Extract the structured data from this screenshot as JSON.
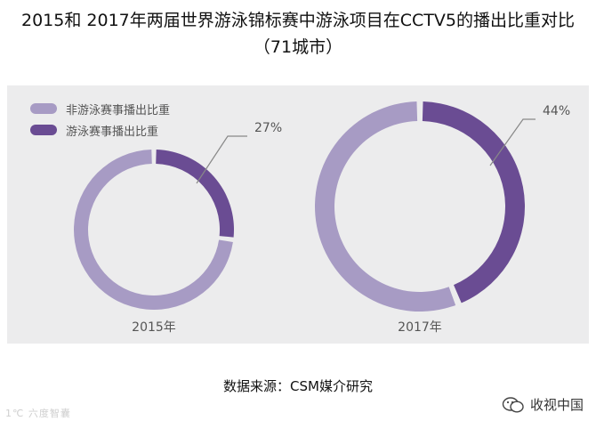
{
  "title": "2015和 2017年两届世界游泳锦标赛中游泳项目在CCTV5的播出比重对比",
  "subtitle": "（71城市）",
  "source": "数据来源：CSM媒介研究",
  "watermark_left": "1℃ 六度智囊",
  "watermark_right": "收视中国",
  "colors": {
    "non_swimming": "#a79bc4",
    "swimming": "#6a4c93",
    "panel": "#ececed"
  },
  "chart_data": [
    {
      "type": "pie",
      "title": "",
      "categories": [
        "非游泳赛事播出比重",
        "游泳赛事播出比重"
      ],
      "values": [
        73,
        27
      ],
      "slice_label": "27%",
      "caption": "2015年",
      "legend": "top-left",
      "donut": true
    },
    {
      "type": "pie",
      "title": "",
      "categories": [
        "非游泳赛事播出比重",
        "游泳赛事播出比重"
      ],
      "values": [
        56,
        44
      ],
      "slice_label": "44%",
      "caption": "2017年",
      "donut": true
    }
  ],
  "legend": [
    {
      "label": "非游泳赛事播出比重",
      "color": "#a79bc4"
    },
    {
      "label": "游泳赛事播出比重",
      "color": "#6a4c93"
    }
  ]
}
